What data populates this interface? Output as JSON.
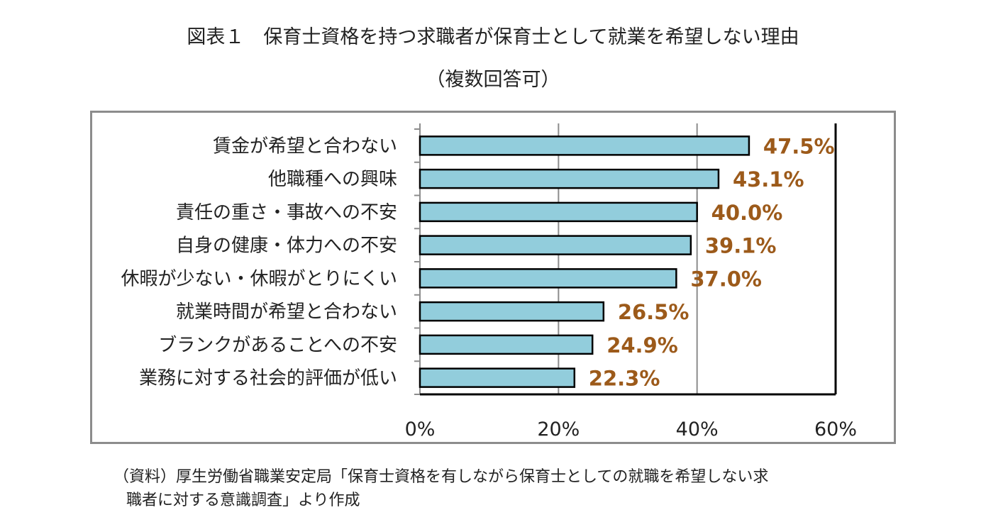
{
  "chart_data": {
    "type": "bar",
    "orientation": "horizontal",
    "title": "図表１　保育士資格を持つ求職者が保育士として就業を希望しない理由",
    "subtitle": "（複数回答可）",
    "categories": [
      "賃金が希望と合わない",
      "他職種への興味",
      "責任の重さ・事故への不安",
      "自身の健康・体力への不安",
      "休暇が少ない・休暇がとりにくい",
      "就業時間が希望と合わない",
      "ブランクがあることへの不安",
      "業務に対する社会的評価が低い"
    ],
    "values": [
      47.5,
      43.1,
      40.0,
      39.1,
      37.0,
      26.5,
      24.9,
      22.3
    ],
    "value_labels": [
      "47.5%",
      "43.1%",
      "40.0%",
      "39.1%",
      "37.0%",
      "26.5%",
      "24.9%",
      "22.3%"
    ],
    "xlim": [
      0,
      60
    ],
    "xticks": [
      0,
      20,
      40,
      60
    ],
    "xtick_labels": [
      "0%",
      "20%",
      "40%",
      "60%"
    ],
    "grid": true,
    "legend": "none"
  },
  "colors": {
    "bar_fill": "#92cddc",
    "bar_stroke": "#000000",
    "value_label": "#9c5a1a",
    "grid": "#8c8c8c",
    "frame": "#8c8c8c"
  },
  "source": {
    "line1": "（資料）厚生労働省職業安定局「保育士資格を有しながら保育士としての就職を希望しない求",
    "line2": "職者に対する意識調査」より作成"
  }
}
